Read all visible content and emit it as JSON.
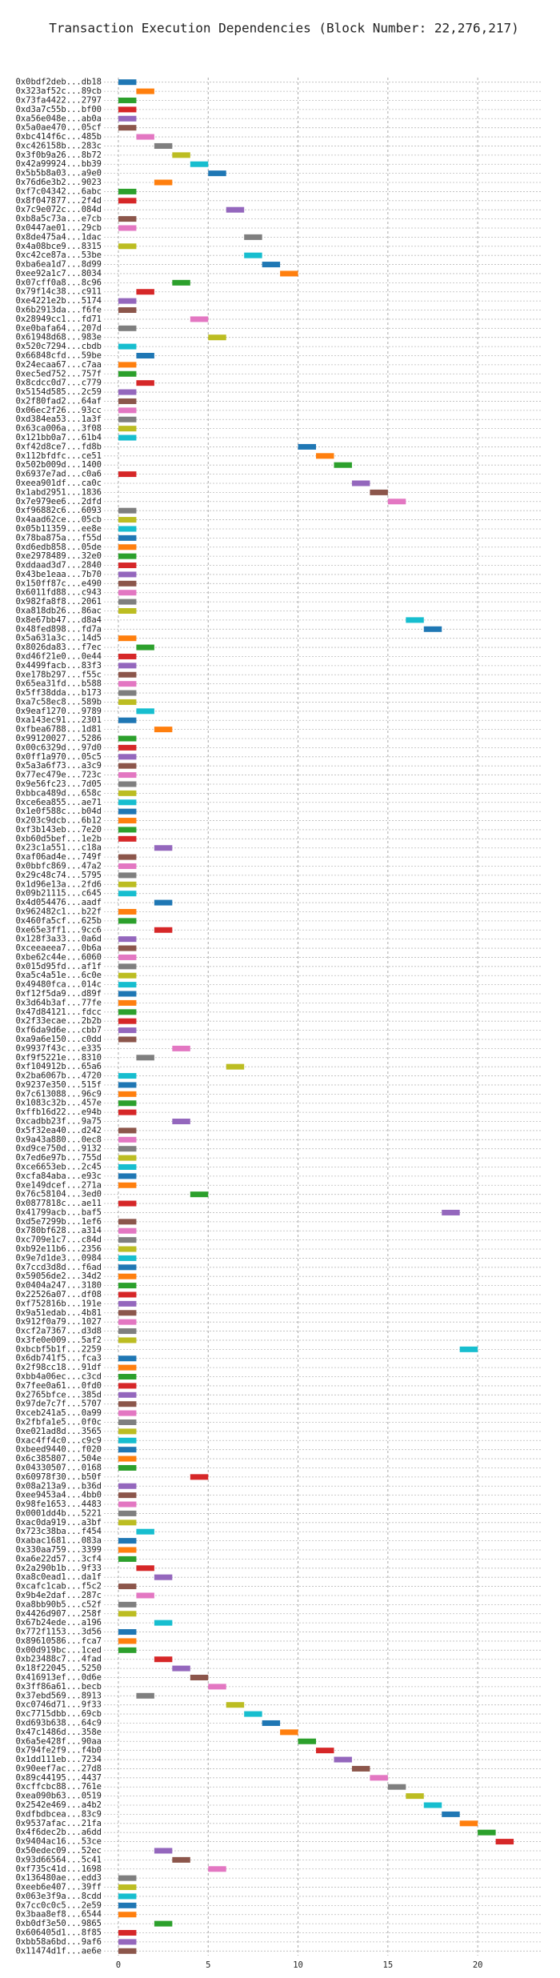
{
  "chart_data": {
    "type": "timeline",
    "title": "Transaction Execution Dependencies (Block Number: 22,276,217)",
    "categories": [
      "0x0bdf2deb...db18",
      "0x323af52c...89cb",
      "0x73fa4422...2797",
      "0xd3a7c55b...bf00",
      "0xa56e048e...ab0a",
      "0x5a0ae470...05cf",
      "0xbc414f6c...485b",
      "0xc426158b...283c",
      "0x3f0b9a26...8b72",
      "0x42a99924...bb39",
      "0x5b5b8a03...a9e0",
      "0x76d6e3b2...9023",
      "0xf7c04342...6abc",
      "0x8f047877...2f4d",
      "0x7c9e072c...084d",
      "0xb8a5c73a...e7cb",
      "0x0447ae01...29cb",
      "0x8de475a4...1dac",
      "0x4a08bce9...8315",
      "0xc42ce87a...53be",
      "0xba6ea1d7...8d99",
      "0xee92a1c7...8034",
      "0x07cff0a8...8c96",
      "0x79f14c38...c911",
      "0xe4221e2b...5174",
      "0x6b2913da...f6fe",
      "0x28949cc1...fd71",
      "0xe0bafa64...207d",
      "0x61948d68...983e",
      "0x520c7294...cbdb",
      "0x66848cfd...59be",
      "0x24ecaa67...c7aa",
      "0xec5ed752...757f",
      "0x8cdcc0d7...c779",
      "0x5154d585...2c59",
      "0x2f80fad2...64af",
      "0x06ec2f26...93cc",
      "0xd384ea53...1a3f",
      "0x63ca006a...3f08",
      "0x121bb0a7...61b4",
      "0xf42d8ce7...fd8b",
      "0x112bfdfc...ce51",
      "0x502b009d...1400",
      "0x6937e7ad...c0a6",
      "0xeea901df...ca0c",
      "0x1abd2951...1836",
      "0x7e979ee6...2dfd",
      "0xf96882c6...6093",
      "0x4aad62ce...05cb",
      "0x05b11359...ee8e",
      "0x78ba875a...f55d",
      "0xd6edb858...05de",
      "0xe2978489...32e0",
      "0xddaad3d7...2840",
      "0x43be1eaa...7b70",
      "0x150ff87c...e490",
      "0x6011fd88...c943",
      "0x982fa8f8...2061",
      "0xa818db26...86ac",
      "0x8e67bb47...d8a4",
      "0x48fed898...fd7a",
      "0x5a631a3c...14d5",
      "0x8026da83...f7ec",
      "0xd46f21e0...0e44",
      "0x4499facb...83f3",
      "0xe178b297...f55c",
      "0x65ea31fd...b588",
      "0x5ff38dda...b173",
      "0xa7c58ec8...589b",
      "0x9eaf1270...9789",
      "0xa143ec91...2301",
      "0xfbea6788...1d81",
      "0x99120027...5286",
      "0x00c6329d...97d0",
      "0x0ff1a970...05c5",
      "0x5a3a6f73...a3c9",
      "0x77ec479e...723c",
      "0x9e56fc23...7d05",
      "0xbbca489d...658c",
      "0xce6ea855...ae71",
      "0x1e0f588c...b04d",
      "0x203c9dcb...6b12",
      "0xf3b143eb...7e20",
      "0xb60d5bef...1e2b",
      "0x23c1a551...c18a",
      "0xaf06ad4e...749f",
      "0x0bbfc869...47a2",
      "0x29c48c74...5795",
      "0x1d96e13a...2fd6",
      "0x09b21115...c645",
      "0x4d054476...aadf",
      "0x962482c1...b22f",
      "0x460fa5cf...625b",
      "0xe65e3ff1...9cc6",
      "0x128f3a33...0a6d",
      "0xceeaeea7...0b6a",
      "0xbe62c44e...6060",
      "0x015d95fd...af1f",
      "0xa5c4a51e...6c0e",
      "0x49480fca...014c",
      "0xf12f5da9...d89f",
      "0x3d64b3af...77fe",
      "0x47d84121...fdcc",
      "0x2f33ecae...2b2b",
      "0xf6da9d6e...cbb7",
      "0xa9a6e150...c0dd",
      "0x9937f43c...e335",
      "0xf9f5221e...8310",
      "0xf104912b...65a6",
      "0x2ba6067b...4720",
      "0x9237e350...515f",
      "0x7c613088...96c9",
      "0x1083c32b...457e",
      "0xffb16d22...e94b",
      "0xcadbb23f...9a75",
      "0x5f32ea40...d242",
      "0x9a43a880...0ec8",
      "0xd9ce750d...9132",
      "0x7ed6e97b...755d",
      "0xce6653eb...2c45",
      "0xcfa84aba...e93c",
      "0xe149dcef...271a",
      "0x76c58104...3ed0",
      "0x0877818c...ae11",
      "0x41799acb...baf5",
      "0xd5e7299b...1ef6",
      "0x780bf628...a314",
      "0xc709e1c7...c84d",
      "0xb92e11b6...2356",
      "0x9e7d1de3...0984",
      "0x7ccd3d8d...f6ad",
      "0x59056de2...34d2",
      "0x0404a247...3180",
      "0x22526a07...df08",
      "0xf752816b...191e",
      "0x9a51edab...4b81",
      "0x912f0a79...1027",
      "0xcf2a7367...d3d8",
      "0x3fe0e009...5af2",
      "0xbcbf5b1f...2259",
      "0x6db741f5...fca3",
      "0x2f98cc18...91df",
      "0xbb4a06ec...c3cd",
      "0x7fee0a61...0fd0",
      "0x2765bfce...385d",
      "0x97de7c7f...5707",
      "0xceb241a5...0a99",
      "0x2fbfa1e5...0f0c",
      "0xe021ad8d...3565",
      "0xac4ff4c0...c9c9",
      "0xbeed9440...f020",
      "0x6c385807...504e",
      "0x04330507...0168",
      "0x60978f30...b50f",
      "0x08a213a9...b36d",
      "0xee9453a4...4bb0",
      "0x98fe1653...4483",
      "0x0001dd4b...5221",
      "0xac0da919...a3bf",
      "0x723c38ba...f454",
      "0xabac1681...083a",
      "0x330aa759...3399",
      "0xa6e22d57...3cf4",
      "0x2a290b1b...9f33",
      "0xa8c0ead1...da1f",
      "0xcafc1cab...f5c2",
      "0x9b4e2daf...287c",
      "0xa8bb90b5...c52f",
      "0x4426d907...258f",
      "0x67b24ede...a196",
      "0x772f1153...3d56",
      "0x89610586...fca7",
      "0x00d919bc...1ced",
      "0xb23488c7...4fad",
      "0x18f22045...5250",
      "0x416913ef...0d6e",
      "0x3ff86a61...becb",
      "0x37ebd569...8913",
      "0xc0746d71...9f33",
      "0xc7715dbb...69cb",
      "0xd693b638...64c9",
      "0x47c1486d...358e",
      "0x6a5e428f...90aa",
      "0x794fe2f9...f4b0",
      "0x1dd111eb...7234",
      "0x90eef7ac...27d8",
      "0x89c44195...4437",
      "0xcffcbc88...761e",
      "0xea090b63...0519",
      "0x2542e469...a4b2",
      "0xdfbdbcea...83c9",
      "0x9537afac...21fa",
      "0x4f6dec2b...a6dd",
      "0x9404ac16...53ce",
      "0x50edec09...52ec",
      "0x93d66564...5c41",
      "0xf735c41d...1698",
      "0x136480ae...edd3",
      "0xeeb6e407...39ff",
      "0x063e3f9a...8cdd",
      "0x7cc0c0c5...2e59",
      "0x3baa8ef8...6544",
      "0xb0df3e50...9865",
      "0x606405d1...8f85",
      "0xbb58a6bd...9af6",
      "0x11474d1f...ae6e"
    ],
    "values": [
      0,
      1,
      0,
      0,
      0,
      0,
      1,
      2,
      3,
      4,
      5,
      2,
      0,
      0,
      6,
      0,
      0,
      7,
      0,
      7,
      8,
      9,
      3,
      1,
      0,
      0,
      4,
      0,
      5,
      0,
      1,
      0,
      0,
      1,
      0,
      0,
      0,
      0,
      0,
      0,
      10,
      11,
      12,
      0,
      13,
      14,
      15,
      0,
      0,
      0,
      0,
      0,
      0,
      0,
      0,
      0,
      0,
      0,
      0,
      16,
      17,
      0,
      1,
      0,
      0,
      0,
      0,
      0,
      0,
      1,
      0,
      2,
      0,
      0,
      0,
      0,
      0,
      0,
      0,
      0,
      0,
      0,
      0,
      0,
      2,
      0,
      0,
      0,
      0,
      0,
      2,
      0,
      0,
      2,
      0,
      0,
      0,
      0,
      0,
      0,
      0,
      0,
      0,
      0,
      0,
      0,
      3,
      1,
      6,
      0,
      0,
      0,
      0,
      0,
      3,
      0,
      0,
      0,
      0,
      0,
      0,
      0,
      4,
      0,
      18,
      0,
      0,
      0,
      0,
      0,
      0,
      0,
      0,
      0,
      0,
      0,
      0,
      0,
      0,
      19,
      0,
      0,
      0,
      0,
      0,
      0,
      0,
      0,
      0,
      0,
      0,
      0,
      0,
      4,
      0,
      0,
      0,
      0,
      0,
      1,
      0,
      0,
      0,
      1,
      2,
      0,
      1,
      0,
      0,
      2,
      0,
      0,
      0,
      2,
      3,
      4,
      5,
      1,
      6,
      7,
      8,
      9,
      10,
      11,
      12,
      13,
      14,
      15,
      16,
      17,
      18,
      19,
      20,
      21,
      2,
      3,
      5,
      0,
      0,
      0,
      0,
      0,
      2,
      0,
      0,
      0
    ],
    "colors": [
      "#1f77b4",
      "#ff7f0e",
      "#2ca02c",
      "#d62728",
      "#9467bd",
      "#8c564b",
      "#e377c2",
      "#7f7f7f",
      "#bcbd22",
      "#17becf"
    ],
    "xlim": [
      -0.8,
      23.6
    ],
    "xticks": [
      0,
      5,
      10,
      15,
      20
    ],
    "grid": true
  }
}
